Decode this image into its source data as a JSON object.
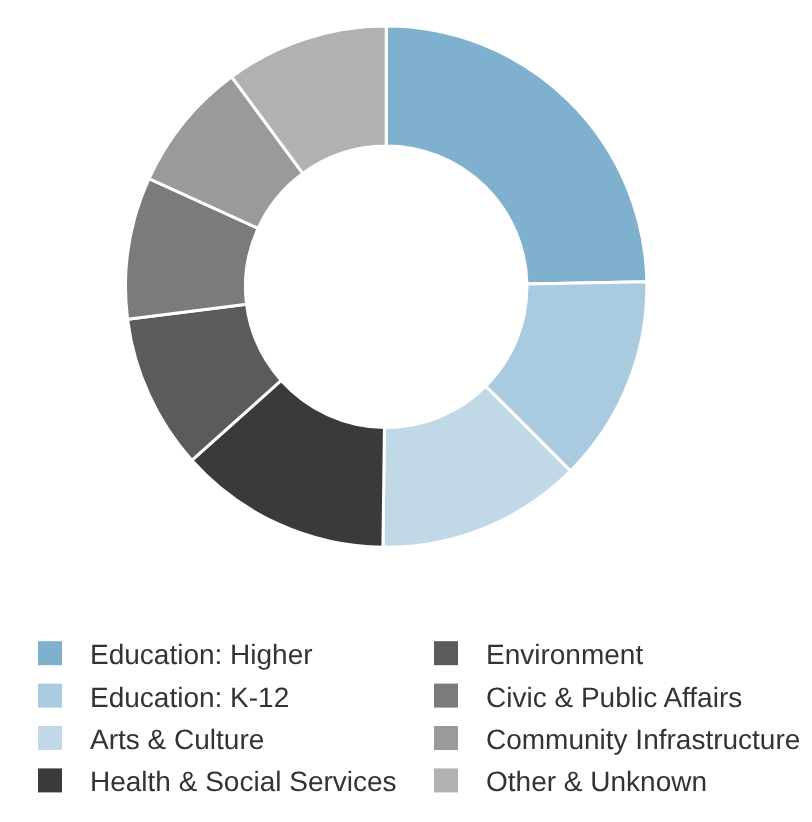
{
  "chart_data": {
    "type": "donut",
    "legend": "bottom",
    "categories": [
      "Education: Higher",
      "Education: K-12",
      "Arts & Culture",
      "Health & Social Services",
      "Environment",
      "Civic & Public Affairs",
      "Community Infrastructure",
      "Other & Unknown"
    ],
    "values": [
      24.7,
      12.8,
      12.7,
      13.2,
      9.6,
      8.8,
      8.1,
      10.1
    ],
    "colors": [
      "#7fb1cf",
      "#a9cadf",
      "#c1d9e6",
      "#3a3a3a",
      "#5c5b5c",
      "#7b7b7b",
      "#9a9a9a",
      "#b1b1b1"
    ]
  }
}
